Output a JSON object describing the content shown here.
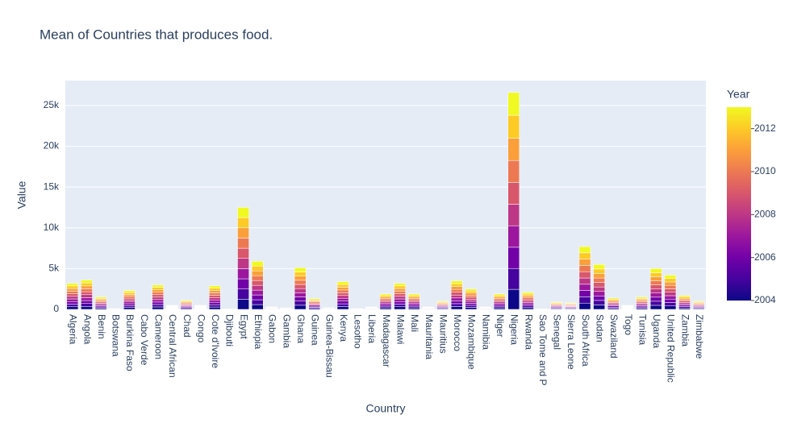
{
  "chart_data": {
    "type": "bar",
    "stacked": true,
    "title": "Mean of Countries that produces food.",
    "x_label": "Country",
    "y_label": "Value",
    "categories": [
      "Algeria",
      "Angola",
      "Benin",
      "Botswana",
      "Burkina Faso",
      "Cabo Verde",
      "Cameroon",
      "Central African",
      "Chad",
      "Congo",
      "Cote d'Ivoire",
      "Djibouti",
      "Egypt",
      "Ethiopia",
      "Gabon",
      "Gambia",
      "Ghana",
      "Guinea",
      "Guinea-Bissau",
      "Kenya",
      "Lesotho",
      "Liberia",
      "Madagascar",
      "Malawi",
      "Mali",
      "Mauritania",
      "Mauritius",
      "Morocco",
      "Mozambique",
      "Namibia",
      "Niger",
      "Nigeria",
      "Rwanda",
      "Sao Tome and P",
      "Senegal",
      "Sierra Leone",
      "South Africa",
      "Sudan",
      "Swaziland",
      "Togo",
      "Tunisia",
      "Uganda",
      "United Republic",
      "Zambia",
      "Zimbabwe"
    ],
    "series": [
      {
        "color": "#0d0887",
        "values": [
          320,
          360,
          150,
          10,
          230,
          5,
          300,
          50,
          110,
          50,
          290,
          5,
          1250,
          590,
          30,
          20,
          510,
          130,
          20,
          340,
          10,
          30,
          190,
          320,
          190,
          30,
          100,
          350,
          250,
          30,
          190,
          2460,
          210,
          5,
          90,
          80,
          770,
          550,
          140,
          50,
          150,
          500,
          420,
          170,
          100
        ]
      },
      {
        "color": "#46039f",
        "values": [
          320,
          360,
          150,
          10,
          230,
          5,
          300,
          50,
          110,
          50,
          290,
          5,
          1250,
          590,
          30,
          20,
          510,
          130,
          20,
          340,
          10,
          30,
          190,
          320,
          190,
          30,
          100,
          350,
          250,
          30,
          190,
          2560,
          210,
          5,
          90,
          80,
          770,
          550,
          140,
          50,
          150,
          500,
          420,
          170,
          100
        ]
      },
      {
        "color": "#7201a8",
        "values": [
          320,
          360,
          150,
          10,
          230,
          5,
          300,
          50,
          110,
          50,
          290,
          5,
          1250,
          590,
          30,
          20,
          510,
          130,
          20,
          340,
          10,
          30,
          190,
          320,
          190,
          30,
          100,
          350,
          250,
          30,
          190,
          2600,
          210,
          5,
          90,
          80,
          770,
          550,
          140,
          50,
          150,
          500,
          420,
          170,
          100
        ]
      },
      {
        "color": "#9c179e",
        "values": [
          320,
          360,
          150,
          10,
          230,
          5,
          300,
          50,
          110,
          50,
          290,
          5,
          1250,
          590,
          30,
          20,
          510,
          130,
          20,
          340,
          10,
          30,
          190,
          320,
          190,
          30,
          100,
          350,
          250,
          30,
          190,
          2640,
          210,
          5,
          90,
          80,
          770,
          550,
          140,
          50,
          150,
          500,
          420,
          170,
          100
        ]
      },
      {
        "color": "#bd3786",
        "values": [
          320,
          360,
          150,
          10,
          230,
          5,
          300,
          50,
          110,
          50,
          290,
          5,
          1250,
          590,
          30,
          20,
          510,
          130,
          20,
          340,
          10,
          30,
          190,
          320,
          190,
          30,
          100,
          350,
          250,
          30,
          190,
          2640,
          210,
          5,
          90,
          80,
          770,
          550,
          140,
          50,
          150,
          500,
          420,
          170,
          100
        ]
      },
      {
        "color": "#d8576b",
        "values": [
          320,
          360,
          150,
          10,
          230,
          5,
          300,
          50,
          110,
          50,
          290,
          5,
          1250,
          590,
          30,
          20,
          510,
          130,
          20,
          340,
          10,
          30,
          190,
          320,
          190,
          30,
          100,
          350,
          250,
          30,
          190,
          2660,
          210,
          5,
          90,
          80,
          770,
          550,
          140,
          50,
          150,
          500,
          420,
          170,
          100
        ]
      },
      {
        "color": "#ed7953",
        "values": [
          320,
          360,
          150,
          10,
          230,
          5,
          300,
          50,
          110,
          50,
          290,
          5,
          1250,
          590,
          30,
          20,
          510,
          130,
          20,
          340,
          10,
          30,
          190,
          320,
          190,
          30,
          100,
          350,
          250,
          30,
          190,
          2700,
          210,
          5,
          90,
          80,
          770,
          550,
          140,
          50,
          150,
          500,
          420,
          170,
          100
        ]
      },
      {
        "color": "#fb9f3a",
        "values": [
          320,
          360,
          150,
          10,
          230,
          5,
          300,
          50,
          110,
          50,
          290,
          5,
          1250,
          590,
          30,
          20,
          510,
          130,
          20,
          340,
          10,
          30,
          190,
          320,
          190,
          30,
          100,
          350,
          250,
          30,
          190,
          2720,
          210,
          5,
          90,
          80,
          770,
          550,
          140,
          50,
          150,
          500,
          420,
          170,
          100
        ]
      },
      {
        "color": "#fdca26",
        "values": [
          320,
          360,
          150,
          10,
          230,
          5,
          300,
          50,
          110,
          50,
          290,
          5,
          1250,
          590,
          30,
          20,
          510,
          130,
          20,
          340,
          10,
          30,
          190,
          320,
          190,
          30,
          100,
          350,
          250,
          30,
          190,
          2820,
          210,
          5,
          90,
          80,
          770,
          550,
          140,
          50,
          150,
          500,
          420,
          170,
          100
        ]
      },
      {
        "color": "#f0f921",
        "values": [
          320,
          360,
          150,
          10,
          230,
          5,
          300,
          50,
          110,
          50,
          290,
          5,
          1250,
          590,
          30,
          20,
          510,
          130,
          20,
          340,
          10,
          30,
          190,
          320,
          190,
          30,
          100,
          350,
          250,
          30,
          190,
          2800,
          210,
          5,
          90,
          80,
          770,
          550,
          140,
          50,
          150,
          500,
          420,
          170,
          100
        ]
      }
    ],
    "ylim": [
      0,
      28060
    ],
    "yticks": [
      0,
      {
        "value": 5000,
        "label": "5k"
      },
      {
        "value": 10000,
        "label": "10k"
      },
      {
        "value": 15000,
        "label": "15k"
      },
      {
        "value": 20000,
        "label": "20k"
      },
      {
        "value": 25000,
        "label": "25k"
      }
    ],
    "grid": true,
    "colorbar": {
      "title": "Year",
      "lim": [
        2004,
        2013
      ],
      "ticks": [
        2004,
        2006,
        2008,
        2010,
        2012
      ]
    }
  }
}
